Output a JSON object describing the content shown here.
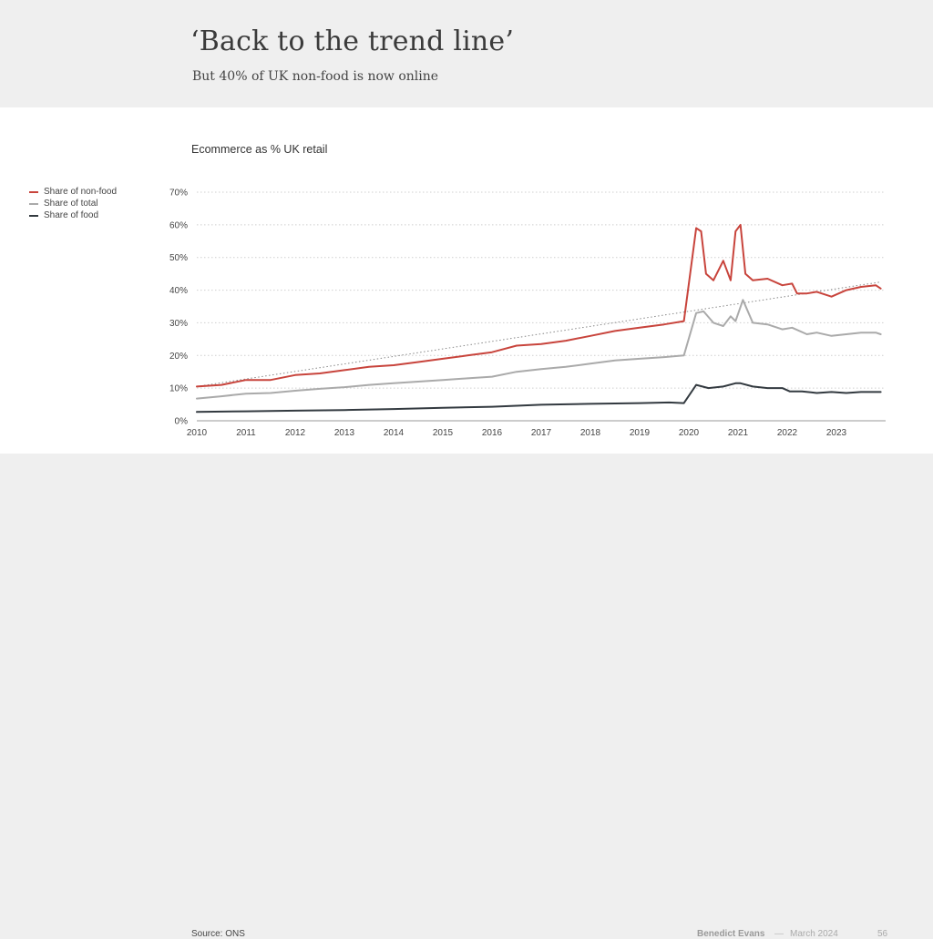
{
  "slide": {
    "title": "‘Back to the trend line’",
    "subtitle": "But 40% of UK non-food is now online",
    "source": "Source: ONS",
    "author": "Benedict Evans",
    "separator": "—",
    "date": "March 2024",
    "page_number": "56"
  },
  "chart_data": {
    "type": "line",
    "title": "Ecommerce as % UK retail",
    "xlabel": "",
    "ylabel": "",
    "xlim": [
      2010,
      2024
    ],
    "ylim": [
      0,
      70
    ],
    "y_ticks": [
      0,
      10,
      20,
      30,
      40,
      50,
      60,
      70
    ],
    "y_tick_labels": [
      "0%",
      "10%",
      "20%",
      "30%",
      "40%",
      "50%",
      "60%",
      "70%"
    ],
    "x_ticks": [
      2010,
      2011,
      2012,
      2013,
      2014,
      2015,
      2016,
      2017,
      2018,
      2019,
      2020,
      2021,
      2022,
      2023
    ],
    "x_tick_labels": [
      "2010",
      "2011",
      "2012",
      "2013",
      "2014",
      "2015",
      "2016",
      "2017",
      "2018",
      "2019",
      "2020",
      "2021",
      "2022",
      "2023"
    ],
    "grid": "horizontal dotted",
    "legend_position": "left",
    "trend_line": {
      "x": [
        2010,
        2023.9
      ],
      "y": [
        10.5,
        42.5
      ],
      "style": "dotted",
      "color": "#888888"
    },
    "series": [
      {
        "name": "Share of non-food",
        "color": "#c8443c",
        "x": [
          2010.0,
          2010.5,
          2011.0,
          2011.5,
          2012.0,
          2012.5,
          2013.0,
          2013.5,
          2014.0,
          2014.5,
          2015.0,
          2015.5,
          2016.0,
          2016.5,
          2017.0,
          2017.5,
          2018.0,
          2018.5,
          2019.0,
          2019.5,
          2019.9,
          2020.15,
          2020.25,
          2020.35,
          2020.5,
          2020.7,
          2020.85,
          2020.95,
          2021.05,
          2021.15,
          2021.3,
          2021.6,
          2021.9,
          2022.1,
          2022.2,
          2022.4,
          2022.6,
          2022.9,
          2023.2,
          2023.5,
          2023.8,
          2023.9
        ],
        "y": [
          10.5,
          11.0,
          12.5,
          12.5,
          14.0,
          14.5,
          15.5,
          16.5,
          17.0,
          18.0,
          19.0,
          20.0,
          21.0,
          23.0,
          23.5,
          24.5,
          26.0,
          27.5,
          28.5,
          29.5,
          30.5,
          59.0,
          58.0,
          45.0,
          43.0,
          49.0,
          43.0,
          58.0,
          60.0,
          45.0,
          43.0,
          43.5,
          41.5,
          42.0,
          39.0,
          39.0,
          39.5,
          38.0,
          40.0,
          41.0,
          41.5,
          40.5
        ]
      },
      {
        "name": "Share of total",
        "color": "#aaaaaa",
        "x": [
          2010.0,
          2010.5,
          2011.0,
          2011.5,
          2012.0,
          2012.5,
          2013.0,
          2013.5,
          2014.0,
          2014.5,
          2015.0,
          2015.5,
          2016.0,
          2016.5,
          2017.0,
          2017.5,
          2018.0,
          2018.5,
          2019.0,
          2019.5,
          2019.9,
          2020.15,
          2020.3,
          2020.5,
          2020.7,
          2020.85,
          2020.95,
          2021.1,
          2021.3,
          2021.6,
          2021.9,
          2022.1,
          2022.4,
          2022.6,
          2022.9,
          2023.2,
          2023.5,
          2023.8,
          2023.9
        ],
        "y": [
          6.8,
          7.5,
          8.3,
          8.5,
          9.2,
          9.8,
          10.3,
          11.0,
          11.5,
          12.0,
          12.5,
          13.0,
          13.5,
          15.0,
          15.8,
          16.5,
          17.5,
          18.5,
          19.0,
          19.5,
          20.0,
          33.0,
          33.5,
          30.0,
          29.0,
          32.0,
          30.5,
          37.0,
          30.0,
          29.5,
          28.0,
          28.5,
          26.5,
          27.0,
          26.0,
          26.5,
          27.0,
          27.0,
          26.5
        ]
      },
      {
        "name": "Share of food",
        "color": "#333a40",
        "x": [
          2010.0,
          2011.0,
          2012.0,
          2013.0,
          2014.0,
          2015.0,
          2016.0,
          2017.0,
          2018.0,
          2019.0,
          2019.6,
          2019.9,
          2020.15,
          2020.4,
          2020.7,
          2020.95,
          2021.05,
          2021.3,
          2021.6,
          2021.9,
          2022.05,
          2022.3,
          2022.6,
          2022.9,
          2023.2,
          2023.5,
          2023.9
        ],
        "y": [
          2.7,
          2.9,
          3.1,
          3.3,
          3.6,
          4.0,
          4.3,
          4.9,
          5.2,
          5.4,
          5.6,
          5.4,
          11.0,
          10.0,
          10.5,
          11.5,
          11.5,
          10.5,
          10.0,
          10.0,
          9.0,
          9.0,
          8.5,
          8.8,
          8.5,
          8.8,
          8.8
        ]
      }
    ]
  }
}
